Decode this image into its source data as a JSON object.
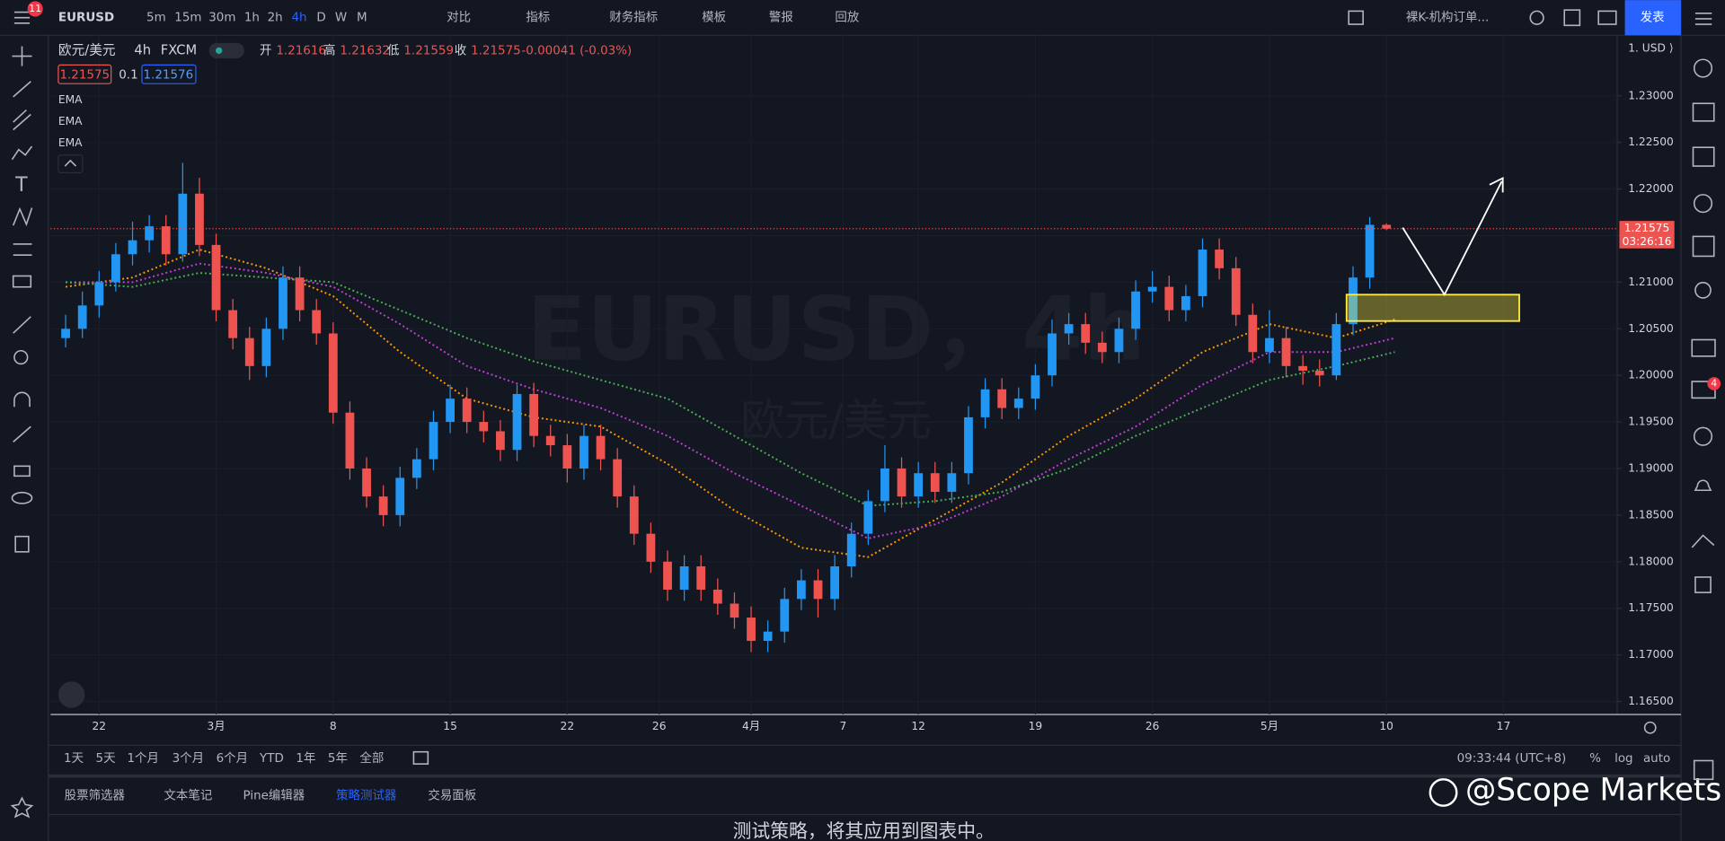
{
  "ui": {
    "notifications": "11",
    "symbol": "EURUSD",
    "intervals": [
      "5m",
      "15m",
      "30m",
      "1h",
      "2h",
      "4h",
      "D",
      "W",
      "M"
    ],
    "active_interval": 5,
    "toolbar": [
      "对比",
      "指标",
      "财务指标",
      "模板",
      "警报",
      "回放"
    ],
    "layout_name": "裸K-机构订单...",
    "publish": "发表",
    "legend": {
      "name": "欧元/美元",
      "interval": "4h",
      "exchange": "FXCM",
      "open_label": "开",
      "high_label": "高",
      "low_label": "低",
      "close_label": "收",
      "change": "-0.00041 (-0.03%)"
    },
    "sell_price": "1.21575",
    "spread": "0.1",
    "buy_price": "1.21576",
    "watermark_symbol": "EURUSD，4h",
    "watermark_name": "欧元/美元",
    "countdown": "03:26:16",
    "currency": "1. USD ⟩",
    "ranges": [
      "1天",
      "5天",
      "1个月",
      "3个月",
      "6个月",
      "YTD",
      "1年",
      "5年",
      "全部"
    ],
    "clock": "09:33:44 (UTC+8)",
    "scale_options": [
      "%",
      "log",
      "auto"
    ],
    "tabs": [
      "股票筛选器",
      "文本笔记",
      "Pine编辑器",
      "策略测试器",
      "交易面板"
    ],
    "active_tab": 3,
    "message": "测试策略，将其应用到图表中。",
    "brand": "@Scope Markets",
    "chat_badge": "4"
  },
  "chart_data": {
    "type": "candlestick",
    "up_color": "#2196f3",
    "down_color": "#ef5350",
    "grid": true,
    "xlim": [
      -2.9,
      90.8
    ],
    "xticks": [
      {
        "value": 0,
        "label": "22"
      },
      {
        "value": 7,
        "label": "3月"
      },
      {
        "value": 14,
        "label": "8"
      },
      {
        "value": 21,
        "label": "15"
      },
      {
        "value": 28,
        "label": "22"
      },
      {
        "value": 33.5,
        "label": "26"
      },
      {
        "value": 39,
        "label": "4月"
      },
      {
        "value": 44.5,
        "label": "7"
      },
      {
        "value": 49,
        "label": "12"
      },
      {
        "value": 56,
        "label": "19"
      },
      {
        "value": 63,
        "label": "26"
      },
      {
        "value": 70,
        "label": "5月"
      },
      {
        "value": 77,
        "label": "10"
      },
      {
        "value": 84,
        "label": "17"
      }
    ],
    "ylim": [
      1.1636,
      1.2365
    ],
    "yticks": [
      {
        "value": 1.165,
        "label": "1.16500"
      },
      {
        "value": 1.17,
        "label": "1.17000"
      },
      {
        "value": 1.175,
        "label": "1.17500"
      },
      {
        "value": 1.18,
        "label": "1.18000"
      },
      {
        "value": 1.185,
        "label": "1.18500"
      },
      {
        "value": 1.19,
        "label": "1.19000"
      },
      {
        "value": 1.195,
        "label": "1.19500"
      },
      {
        "value": 1.2,
        "label": "1.20000"
      },
      {
        "value": 1.205,
        "label": "1.20500"
      },
      {
        "value": 1.21,
        "label": "1.21000"
      },
      {
        "value": 1.215,
        "label": "1.21500"
      },
      {
        "value": 1.22,
        "label": "1.22000"
      },
      {
        "value": 1.225,
        "label": "1.22500"
      },
      {
        "value": 1.23,
        "label": "1.23000"
      }
    ],
    "x": [
      -2,
      -1,
      0,
      1,
      2,
      3,
      4,
      5,
      6,
      7,
      8,
      9,
      10,
      11,
      12,
      13,
      14,
      15,
      16,
      17,
      18,
      19,
      20,
      21,
      22,
      23,
      24,
      25,
      26,
      27,
      28,
      29,
      30,
      31,
      32,
      33,
      34,
      35,
      36,
      37,
      38,
      39,
      40,
      41,
      42,
      43,
      44,
      45,
      46,
      47,
      48,
      49,
      50,
      51,
      52,
      53,
      54,
      55,
      56,
      57,
      58,
      59,
      60,
      61,
      62,
      63,
      64,
      65,
      66,
      67,
      68,
      69,
      70,
      71,
      72,
      73,
      74,
      75,
      76,
      77
    ],
    "ohlc": [
      [
        1.204,
        1.2065,
        1.203,
        1.205
      ],
      [
        1.205,
        1.209,
        1.204,
        1.2075
      ],
      [
        1.2075,
        1.2112,
        1.2062,
        1.21
      ],
      [
        1.21,
        1.2142,
        1.209,
        1.213
      ],
      [
        1.213,
        1.2165,
        1.2118,
        1.2145
      ],
      [
        1.2145,
        1.2172,
        1.2132,
        1.216
      ],
      [
        1.216,
        1.2172,
        1.2118,
        1.213
      ],
      [
        1.213,
        1.2228,
        1.2122,
        1.2195
      ],
      [
        1.2195,
        1.2212,
        1.2128,
        1.214
      ],
      [
        1.214,
        1.2152,
        1.2058,
        1.207
      ],
      [
        1.207,
        1.2082,
        1.2028,
        1.204
      ],
      [
        1.204,
        1.2052,
        1.1995,
        1.201
      ],
      [
        1.201,
        1.2062,
        1.1998,
        1.205
      ],
      [
        1.205,
        1.2117,
        1.2038,
        1.2105
      ],
      [
        1.2105,
        1.2117,
        1.2058,
        1.207
      ],
      [
        1.207,
        1.2082,
        1.2033,
        1.2045
      ],
      [
        1.2045,
        1.2057,
        1.1948,
        1.196
      ],
      [
        1.196,
        1.1972,
        1.1888,
        1.19
      ],
      [
        1.19,
        1.1912,
        1.1858,
        1.187
      ],
      [
        1.187,
        1.1882,
        1.1838,
        1.185
      ],
      [
        1.185,
        1.1902,
        1.1838,
        1.189
      ],
      [
        1.189,
        1.1922,
        1.1878,
        1.191
      ],
      [
        1.191,
        1.1962,
        1.1898,
        1.195
      ],
      [
        1.195,
        1.199,
        1.1938,
        1.1975
      ],
      [
        1.1975,
        1.1987,
        1.1938,
        1.195
      ],
      [
        1.195,
        1.1962,
        1.1928,
        1.194
      ],
      [
        1.194,
        1.1952,
        1.1908,
        1.192
      ],
      [
        1.192,
        1.199,
        1.1908,
        1.198
      ],
      [
        1.198,
        1.1992,
        1.1923,
        1.1935
      ],
      [
        1.1935,
        1.1947,
        1.1913,
        1.1925
      ],
      [
        1.1925,
        1.1937,
        1.1885,
        1.19
      ],
      [
        1.19,
        1.1947,
        1.1888,
        1.1935
      ],
      [
        1.1935,
        1.1947,
        1.1898,
        1.191
      ],
      [
        1.191,
        1.1922,
        1.1858,
        1.187
      ],
      [
        1.187,
        1.1882,
        1.1818,
        1.183
      ],
      [
        1.183,
        1.1842,
        1.1788,
        1.18
      ],
      [
        1.18,
        1.1812,
        1.1758,
        1.177
      ],
      [
        1.177,
        1.1807,
        1.1758,
        1.1795
      ],
      [
        1.1795,
        1.1807,
        1.1758,
        1.177
      ],
      [
        1.177,
        1.1782,
        1.1743,
        1.1755
      ],
      [
        1.1755,
        1.1767,
        1.1728,
        1.174
      ],
      [
        1.174,
        1.1752,
        1.1703,
        1.1715
      ],
      [
        1.1715,
        1.1737,
        1.1703,
        1.1725
      ],
      [
        1.1725,
        1.1772,
        1.1713,
        1.176
      ],
      [
        1.176,
        1.1792,
        1.1748,
        1.178
      ],
      [
        1.178,
        1.1792,
        1.174,
        1.176
      ],
      [
        1.176,
        1.1807,
        1.1748,
        1.1795
      ],
      [
        1.1795,
        1.1842,
        1.1783,
        1.183
      ],
      [
        1.183,
        1.1877,
        1.1818,
        1.1865
      ],
      [
        1.1865,
        1.1925,
        1.1853,
        1.19
      ],
      [
        1.19,
        1.1912,
        1.1858,
        1.187
      ],
      [
        1.187,
        1.1907,
        1.1858,
        1.1895
      ],
      [
        1.1895,
        1.1907,
        1.1863,
        1.1875
      ],
      [
        1.1875,
        1.1907,
        1.1863,
        1.1895
      ],
      [
        1.1895,
        1.1967,
        1.1883,
        1.1955
      ],
      [
        1.1955,
        1.1997,
        1.1943,
        1.1985
      ],
      [
        1.1985,
        1.1997,
        1.1953,
        1.1965
      ],
      [
        1.1965,
        1.1987,
        1.1953,
        1.1975
      ],
      [
        1.1975,
        1.2012,
        1.1963,
        1.2
      ],
      [
        1.2,
        1.206,
        1.1988,
        1.2045
      ],
      [
        1.2045,
        1.2067,
        1.2033,
        1.2055
      ],
      [
        1.2055,
        1.2067,
        1.2023,
        1.2035
      ],
      [
        1.2035,
        1.2047,
        1.2013,
        1.2025
      ],
      [
        1.2025,
        1.2062,
        1.2013,
        1.205
      ],
      [
        1.205,
        1.2102,
        1.2038,
        1.209
      ],
      [
        1.209,
        1.2112,
        1.2078,
        1.2095
      ],
      [
        1.2095,
        1.2107,
        1.2058,
        1.207
      ],
      [
        1.207,
        1.2097,
        1.2058,
        1.2085
      ],
      [
        1.2085,
        1.2147,
        1.2073,
        1.2135
      ],
      [
        1.2135,
        1.2147,
        1.2103,
        1.2115
      ],
      [
        1.2115,
        1.2127,
        1.2053,
        1.2065
      ],
      [
        1.2065,
        1.2077,
        1.2013,
        1.2025
      ],
      [
        1.2025,
        1.207,
        1.2013,
        1.204
      ],
      [
        1.204,
        1.2052,
        1.1998,
        1.201
      ],
      [
        1.201,
        1.2022,
        1.199,
        1.2005
      ],
      [
        1.2005,
        1.2017,
        1.1988,
        1.2
      ],
      [
        1.2,
        1.2067,
        1.1995,
        1.2055
      ],
      [
        1.2055,
        1.2117,
        1.2043,
        1.2105
      ],
      [
        1.2105,
        1.217,
        1.2093,
        1.21616
      ],
      [
        1.21616,
        1.21632,
        1.21559,
        1.21575
      ]
    ],
    "series": [
      {
        "name": "EMA",
        "color": "#ff9800",
        "x": [
          -2,
          2,
          6,
          10,
          14,
          18,
          22,
          26,
          30,
          34,
          38,
          42,
          46,
          50,
          54,
          58,
          62,
          66,
          70,
          74,
          77.5
        ],
        "values": [
          1.2095,
          1.2105,
          1.2135,
          1.2115,
          1.2085,
          1.2025,
          1.1975,
          1.1955,
          1.1945,
          1.1905,
          1.1855,
          1.1815,
          1.1805,
          1.1845,
          1.1885,
          1.1935,
          1.1975,
          1.2025,
          1.2055,
          1.204,
          1.206
        ]
      },
      {
        "name": "EMA",
        "color": "#c13fd6",
        "x": [
          -2,
          2,
          6,
          10,
          14,
          18,
          22,
          26,
          30,
          34,
          38,
          42,
          46,
          50,
          54,
          58,
          62,
          66,
          70,
          74,
          77.5
        ],
        "values": [
          1.21,
          1.21,
          1.212,
          1.211,
          1.2095,
          1.2055,
          1.201,
          1.1985,
          1.1965,
          1.1935,
          1.1895,
          1.186,
          1.1825,
          1.184,
          1.187,
          1.191,
          1.1945,
          1.199,
          1.2025,
          1.2025,
          1.204
        ]
      },
      {
        "name": "EMA",
        "color": "#4caf50",
        "x": [
          -2,
          2,
          6,
          10,
          14,
          18,
          22,
          26,
          30,
          34,
          38,
          42,
          46,
          50,
          54,
          58,
          62,
          66,
          70,
          74,
          77.5
        ],
        "values": [
          1.21,
          1.2095,
          1.211,
          1.2105,
          1.21,
          1.207,
          1.204,
          1.2015,
          1.1995,
          1.1975,
          1.1935,
          1.1895,
          1.186,
          1.1865,
          1.1875,
          1.19,
          1.1935,
          1.1965,
          1.1995,
          1.201,
          1.2025
        ]
      }
    ]
  }
}
